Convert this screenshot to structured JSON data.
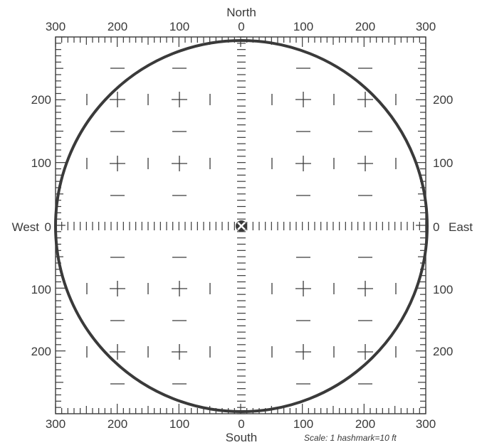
{
  "directions": {
    "north": "North",
    "south": "South",
    "west": "West",
    "east": "East"
  },
  "top_ticks": [
    "300",
    "200",
    "100",
    "0",
    "100",
    "200",
    "300"
  ],
  "bottom_ticks": [
    "300",
    "200",
    "100",
    "0",
    "100",
    "200",
    "300"
  ],
  "left_ticks": [
    "200",
    "100",
    "0",
    "100",
    "200"
  ],
  "right_ticks": [
    "200",
    "100",
    "0",
    "100",
    "200"
  ],
  "scale_note": "Scale:  1 hashmark=10 ft",
  "center_marker": "x-marker-icon",
  "colors": {
    "ink": "#3a3a3a",
    "background": "#ffffff"
  }
}
